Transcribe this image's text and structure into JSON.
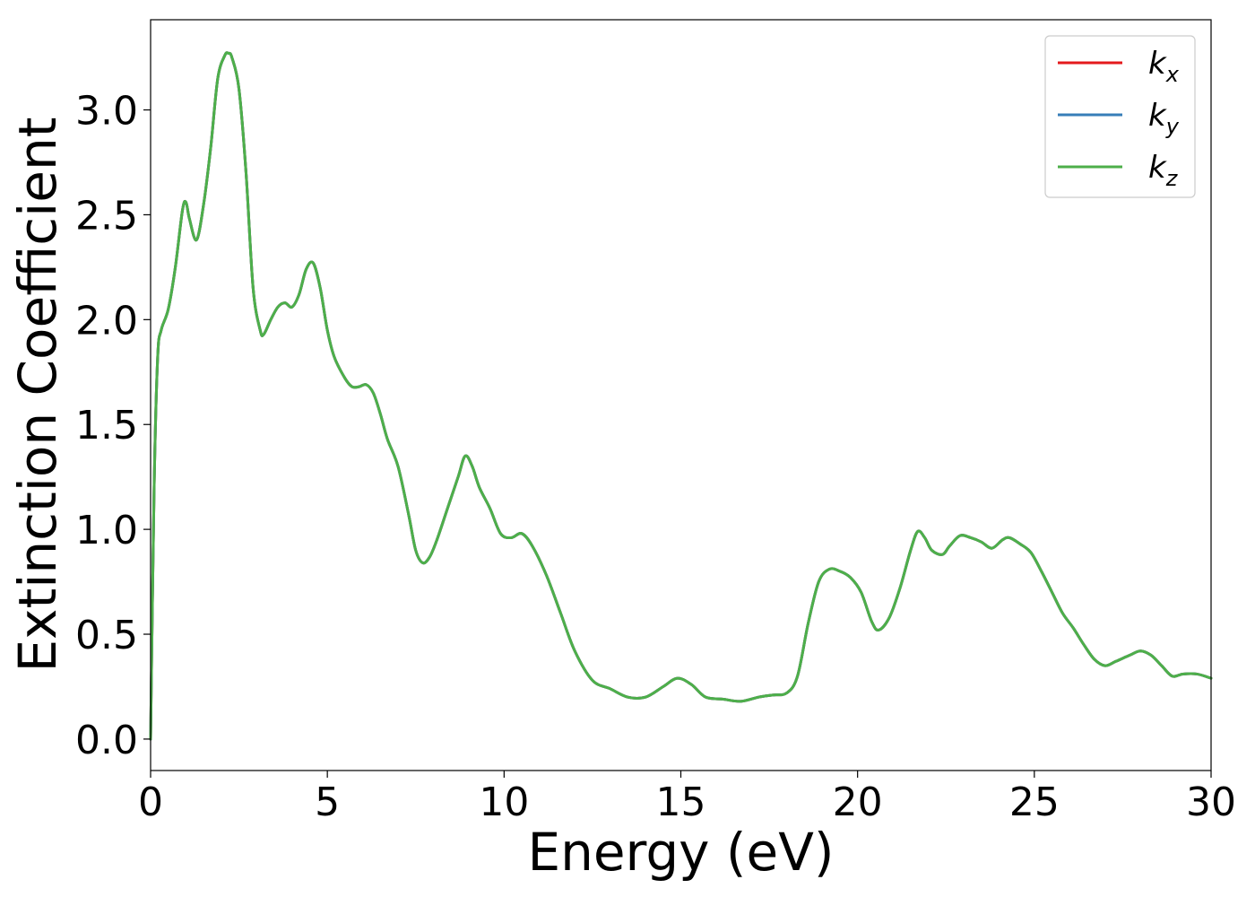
{
  "chart_data": {
    "type": "line",
    "title": "",
    "xlabel": "Energy (eV)",
    "ylabel": "Extinction Coefficient",
    "xlim": [
      0,
      30
    ],
    "ylim": [
      -0.15,
      3.43
    ],
    "xticks": [
      0,
      5,
      10,
      15,
      20,
      25,
      30
    ],
    "xtick_labels": [
      "0",
      "5",
      "10",
      "15",
      "20",
      "25",
      "30"
    ],
    "yticks": [
      0.0,
      0.5,
      1.0,
      1.5,
      2.0,
      2.5,
      3.0
    ],
    "ytick_labels": [
      "0.0",
      "0.5",
      "1.0",
      "1.5",
      "2.0",
      "2.5",
      "3.0"
    ],
    "grid": false,
    "legend_position": "top-right",
    "x": [
      0,
      0.1,
      0.2,
      0.3,
      0.5,
      0.7,
      0.9,
      1.0,
      1.1,
      1.3,
      1.5,
      1.7,
      1.9,
      2.1,
      2.2,
      2.3,
      2.5,
      2.7,
      2.9,
      3.1,
      3.2,
      3.4,
      3.6,
      3.8,
      4.0,
      4.2,
      4.4,
      4.6,
      4.8,
      5.0,
      5.2,
      5.5,
      5.7,
      5.9,
      6.1,
      6.3,
      6.5,
      6.7,
      7.0,
      7.3,
      7.5,
      7.7,
      7.9,
      8.1,
      8.4,
      8.7,
      8.9,
      9.1,
      9.3,
      9.6,
      9.9,
      10.2,
      10.5,
      10.8,
      11.2,
      11.6,
      12.0,
      12.5,
      13.0,
      13.5,
      14.0,
      14.5,
      14.9,
      15.3,
      15.7,
      16.2,
      16.7,
      17.2,
      17.6,
      18.0,
      18.3,
      18.6,
      18.9,
      19.2,
      19.5,
      19.8,
      20.1,
      20.4,
      20.6,
      20.9,
      21.2,
      21.5,
      21.7,
      21.9,
      22.1,
      22.4,
      22.6,
      22.9,
      23.2,
      23.5,
      23.8,
      24.1,
      24.3,
      24.6,
      24.9,
      25.2,
      25.5,
      25.8,
      26.1,
      26.4,
      26.7,
      27.0,
      27.3,
      27.7,
      28.0,
      28.3,
      28.6,
      28.9,
      29.2,
      29.6,
      30.0
    ],
    "series": [
      {
        "name": "k_x",
        "color": "#e41a1c",
        "values": [
          0.0,
          1.2,
          1.82,
          1.95,
          2.05,
          2.25,
          2.52,
          2.56,
          2.48,
          2.38,
          2.55,
          2.82,
          3.15,
          3.26,
          3.27,
          3.25,
          3.1,
          2.7,
          2.15,
          1.95,
          1.93,
          2.0,
          2.06,
          2.08,
          2.06,
          2.12,
          2.24,
          2.27,
          2.15,
          1.95,
          1.82,
          1.72,
          1.68,
          1.68,
          1.69,
          1.65,
          1.55,
          1.43,
          1.3,
          1.07,
          0.9,
          0.84,
          0.87,
          0.95,
          1.1,
          1.25,
          1.35,
          1.3,
          1.2,
          1.1,
          0.98,
          0.96,
          0.98,
          0.92,
          0.78,
          0.6,
          0.42,
          0.28,
          0.24,
          0.2,
          0.2,
          0.25,
          0.29,
          0.26,
          0.2,
          0.19,
          0.18,
          0.2,
          0.21,
          0.22,
          0.3,
          0.55,
          0.75,
          0.81,
          0.8,
          0.77,
          0.7,
          0.56,
          0.52,
          0.58,
          0.72,
          0.9,
          0.99,
          0.96,
          0.9,
          0.88,
          0.92,
          0.97,
          0.96,
          0.94,
          0.91,
          0.95,
          0.96,
          0.93,
          0.89,
          0.8,
          0.7,
          0.6,
          0.53,
          0.45,
          0.38,
          0.35,
          0.37,
          0.4,
          0.42,
          0.4,
          0.35,
          0.3,
          0.31,
          0.31,
          0.29
        ]
      },
      {
        "name": "k_y",
        "color": "#377eb8",
        "values": [
          0.0,
          1.2,
          1.82,
          1.95,
          2.05,
          2.25,
          2.52,
          2.56,
          2.48,
          2.38,
          2.55,
          2.82,
          3.15,
          3.26,
          3.27,
          3.25,
          3.1,
          2.7,
          2.15,
          1.95,
          1.93,
          2.0,
          2.06,
          2.08,
          2.06,
          2.12,
          2.24,
          2.27,
          2.15,
          1.95,
          1.82,
          1.72,
          1.68,
          1.68,
          1.69,
          1.65,
          1.55,
          1.43,
          1.3,
          1.07,
          0.9,
          0.84,
          0.87,
          0.95,
          1.1,
          1.25,
          1.35,
          1.3,
          1.2,
          1.1,
          0.98,
          0.96,
          0.98,
          0.92,
          0.78,
          0.6,
          0.42,
          0.28,
          0.24,
          0.2,
          0.2,
          0.25,
          0.29,
          0.26,
          0.2,
          0.19,
          0.18,
          0.2,
          0.21,
          0.22,
          0.3,
          0.55,
          0.75,
          0.81,
          0.8,
          0.77,
          0.7,
          0.56,
          0.52,
          0.58,
          0.72,
          0.9,
          0.99,
          0.96,
          0.9,
          0.88,
          0.92,
          0.97,
          0.96,
          0.94,
          0.91,
          0.95,
          0.96,
          0.93,
          0.89,
          0.8,
          0.7,
          0.6,
          0.53,
          0.45,
          0.38,
          0.35,
          0.37,
          0.4,
          0.42,
          0.4,
          0.35,
          0.3,
          0.31,
          0.31,
          0.29
        ]
      },
      {
        "name": "k_z",
        "color": "#4daf4a",
        "values": [
          0.0,
          1.2,
          1.82,
          1.95,
          2.05,
          2.25,
          2.52,
          2.56,
          2.48,
          2.38,
          2.55,
          2.82,
          3.15,
          3.26,
          3.27,
          3.25,
          3.1,
          2.7,
          2.15,
          1.95,
          1.93,
          2.0,
          2.06,
          2.08,
          2.06,
          2.12,
          2.24,
          2.27,
          2.15,
          1.95,
          1.82,
          1.72,
          1.68,
          1.68,
          1.69,
          1.65,
          1.55,
          1.43,
          1.3,
          1.07,
          0.9,
          0.84,
          0.87,
          0.95,
          1.1,
          1.25,
          1.35,
          1.3,
          1.2,
          1.1,
          0.98,
          0.96,
          0.98,
          0.92,
          0.78,
          0.6,
          0.42,
          0.28,
          0.24,
          0.2,
          0.2,
          0.25,
          0.29,
          0.26,
          0.2,
          0.19,
          0.18,
          0.2,
          0.21,
          0.22,
          0.3,
          0.55,
          0.75,
          0.81,
          0.8,
          0.77,
          0.7,
          0.56,
          0.52,
          0.58,
          0.72,
          0.9,
          0.99,
          0.96,
          0.9,
          0.88,
          0.92,
          0.97,
          0.96,
          0.94,
          0.91,
          0.95,
          0.96,
          0.93,
          0.89,
          0.8,
          0.7,
          0.6,
          0.53,
          0.45,
          0.38,
          0.35,
          0.37,
          0.4,
          0.42,
          0.4,
          0.35,
          0.3,
          0.31,
          0.31,
          0.29
        ]
      }
    ],
    "legend": [
      {
        "base": "k",
        "sub": "x"
      },
      {
        "base": "k",
        "sub": "y"
      },
      {
        "base": "k",
        "sub": "z"
      }
    ]
  }
}
